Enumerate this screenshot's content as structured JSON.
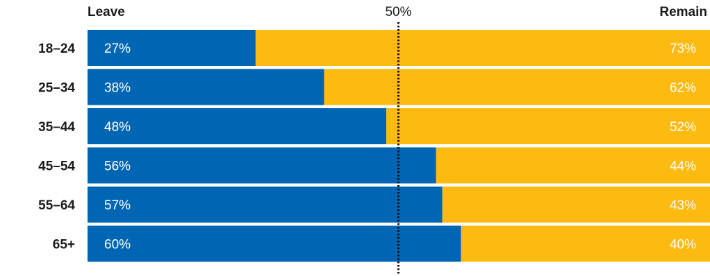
{
  "chart_data": {
    "type": "bar",
    "orientation": "horizontal",
    "stacked": true,
    "normalized": true,
    "categories": [
      "18–24",
      "25–34",
      "35–44",
      "45–54",
      "55–64",
      "65+"
    ],
    "series": [
      {
        "name": "Leave",
        "values": [
          27,
          38,
          48,
          56,
          57,
          60
        ],
        "labels": [
          "27%",
          "38%",
          "48%",
          "56%",
          "57%",
          "60%"
        ],
        "color": "#0066b3"
      },
      {
        "name": "Remain",
        "values": [
          73,
          62,
          52,
          44,
          43,
          40
        ],
        "labels": [
          "73%",
          "62%",
          "52%",
          "44%",
          "43%",
          "40%"
        ],
        "color": "#fdbb12"
      }
    ],
    "xlim": [
      0,
      100
    ],
    "reference_line": {
      "value": 50,
      "label": "50%",
      "style": "dotted"
    },
    "label_color": "#ffffff",
    "grid": false
  }
}
